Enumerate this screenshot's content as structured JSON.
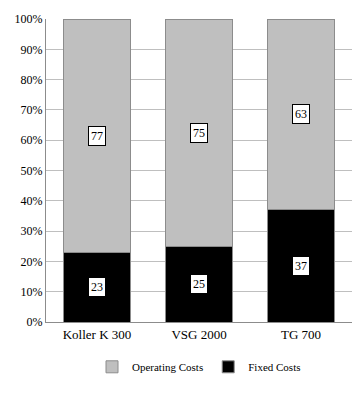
{
  "chart_data": {
    "type": "bar",
    "stacked": true,
    "data_labels": true,
    "grid": true,
    "legend": "bottom",
    "categories": [
      "Koller K 300",
      "VSG 2000",
      "TG 700"
    ],
    "series": [
      {
        "name": "Fixed Costs",
        "color": "#000000",
        "values": [
          23,
          25,
          37
        ]
      },
      {
        "name": "Operating Costs",
        "color": "#bfbfbf",
        "values": [
          77,
          75,
          63
        ]
      }
    ],
    "ylim": [
      0,
      100
    ],
    "yticks": [
      {
        "value": 0,
        "label": "0%"
      },
      {
        "value": 10,
        "label": "10%"
      },
      {
        "value": 20,
        "label": "20%"
      },
      {
        "value": 30,
        "label": "30%"
      },
      {
        "value": 40,
        "label": "40%"
      },
      {
        "value": 50,
        "label": "50%"
      },
      {
        "value": 60,
        "label": "60%"
      },
      {
        "value": 70,
        "label": "70%"
      },
      {
        "value": 80,
        "label": "80%"
      },
      {
        "value": 90,
        "label": "90%"
      },
      {
        "value": 100,
        "label": "100%"
      }
    ]
  }
}
